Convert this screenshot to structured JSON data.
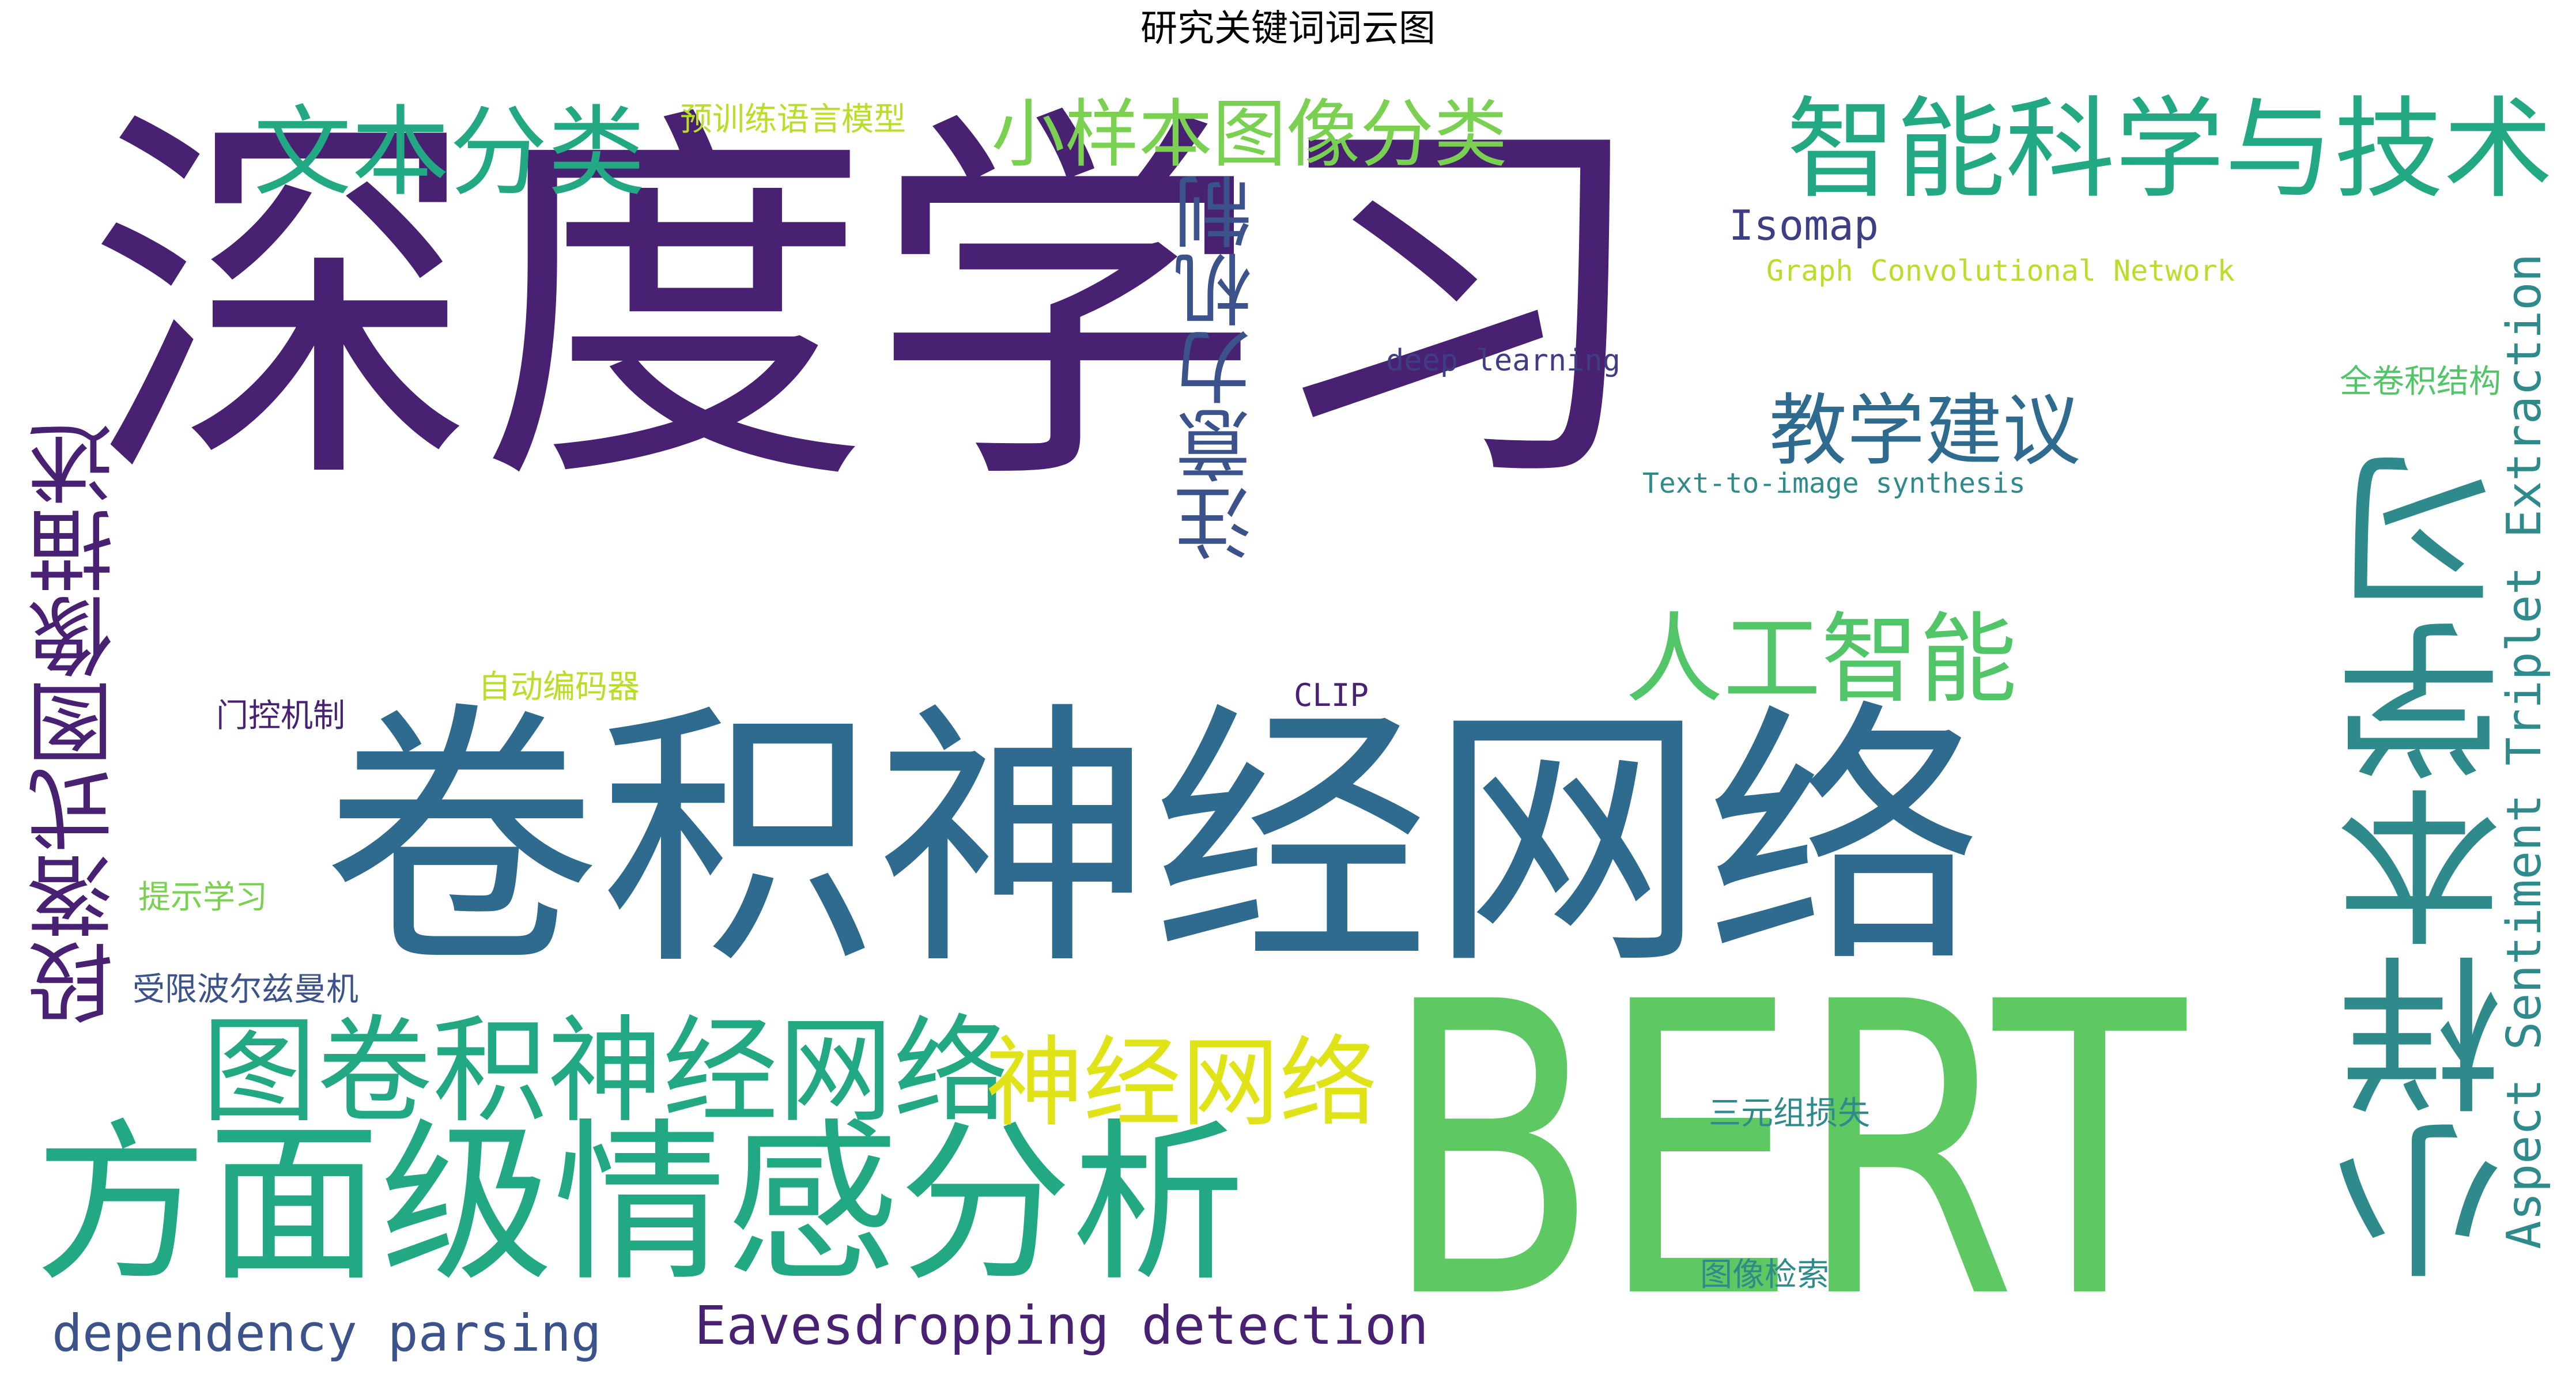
{
  "title": "研究关键词词云图",
  "colors": {
    "dark_purple": "#482173",
    "purple": "#3f3d84",
    "blue": "#2f6b8e",
    "teal": "#2f8a8c",
    "green_teal": "#23a884",
    "green": "#52c569",
    "light_green": "#7ad151",
    "yellow_green": "#b8de29",
    "yellow": "#e2e418",
    "navy": "#3b528b"
  },
  "words": [
    {
      "text": "深度学习",
      "color": "#482173",
      "weight": 1.0
    },
    {
      "text": "BERT",
      "color": "#5ec962",
      "weight": 0.95
    },
    {
      "text": "卷积神经网络",
      "color": "#2f6b8e",
      "weight": 0.72
    },
    {
      "text": "方面级情感分析",
      "color": "#23a884",
      "weight": 0.42
    },
    {
      "text": "小样本学习",
      "color": "#2f8a8c",
      "weight": 0.42
    },
    {
      "text": "图卷积神经网络",
      "color": "#23a884",
      "weight": 0.3
    },
    {
      "text": "智能科学与技术",
      "color": "#23a884",
      "weight": 0.26
    },
    {
      "text": "段落式图像描述",
      "color": "#482173",
      "weight": 0.22
    },
    {
      "text": "注意力机制",
      "color": "#3b528b",
      "weight": 0.22
    },
    {
      "text": "神经网络",
      "color": "#dfe318",
      "weight": 0.24
    },
    {
      "text": "文本分类",
      "color": "#23a884",
      "weight": 0.22
    },
    {
      "text": "人工智能",
      "color": "#52c569",
      "weight": 0.2
    },
    {
      "text": "小样本图像分类",
      "color": "#7ad151",
      "weight": 0.18
    },
    {
      "text": "教学建议",
      "color": "#2f6b8e",
      "weight": 0.16
    },
    {
      "text": "Aspect Sentiment Triplet Extraction",
      "color": "#2f8a8c",
      "weight": 0.1
    },
    {
      "text": "Eavesdropping detection",
      "color": "#482173",
      "weight": 0.1
    },
    {
      "text": "dependency parsing",
      "color": "#3b528b",
      "weight": 0.1
    },
    {
      "text": "Isomap",
      "color": "#3f3d84",
      "weight": 0.08
    },
    {
      "text": "Graph Convolutional Network",
      "color": "#b8de29",
      "weight": 0.05
    },
    {
      "text": "deep learning",
      "color": "#3f3d84",
      "weight": 0.05
    },
    {
      "text": "Text-to-image synthesis",
      "color": "#2f8a8c",
      "weight": 0.05
    },
    {
      "text": "预训练语言模型",
      "color": "#b8de29",
      "weight": 0.05
    },
    {
      "text": "全卷积结构",
      "color": "#52c569",
      "weight": 0.05
    },
    {
      "text": "门控机制",
      "color": "#482173",
      "weight": 0.05
    },
    {
      "text": "自动编码器",
      "color": "#b8de29",
      "weight": 0.05
    },
    {
      "text": "CLIP",
      "color": "#482173",
      "weight": 0.05
    },
    {
      "text": "提示学习",
      "color": "#7ad151",
      "weight": 0.05
    },
    {
      "text": "受限波尔兹曼机",
      "color": "#3b528b",
      "weight": 0.05
    },
    {
      "text": "三元组损失",
      "color": "#2f8a8c",
      "weight": 0.05
    },
    {
      "text": "图像检索",
      "color": "#2f8a8c",
      "weight": 0.05
    }
  ]
}
